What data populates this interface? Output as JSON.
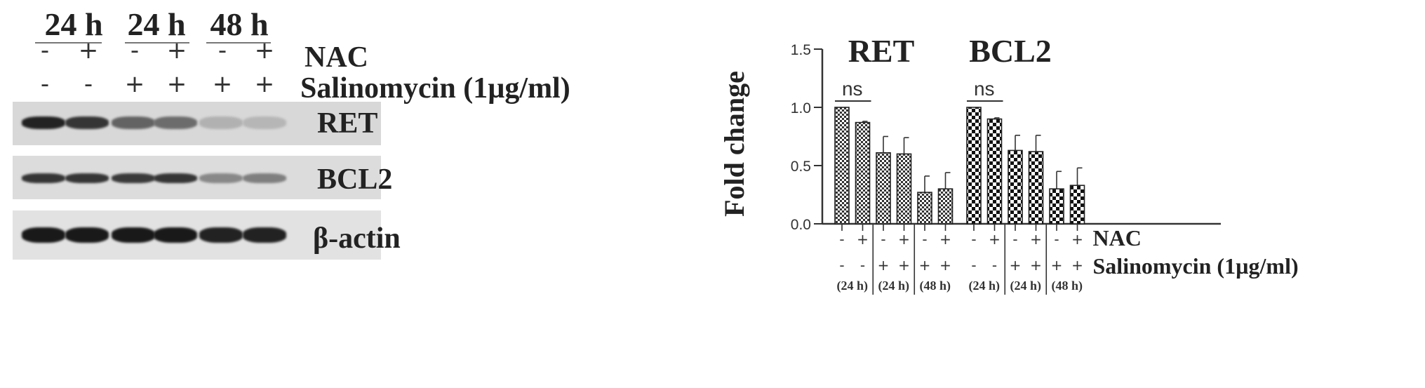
{
  "blot": {
    "time_headers": [
      "24 h",
      "24 h",
      "48 h"
    ],
    "nac_label": "NAC",
    "salinomycin_label": "Salinomycin (1µg/ml)",
    "nac_signs": [
      "-",
      "+",
      "-",
      "+",
      "-",
      "+"
    ],
    "salinomycin_signs": [
      "-",
      "-",
      "+",
      "+",
      "+",
      "+"
    ],
    "panels": [
      {
        "label": "RET",
        "intensities": [
          0.95,
          0.85,
          0.6,
          0.55,
          0.18,
          0.15
        ]
      },
      {
        "label": "BCL2",
        "intensities": [
          0.85,
          0.85,
          0.82,
          0.85,
          0.4,
          0.45
        ]
      },
      {
        "label": "β-actin",
        "intensities": [
          1.0,
          1.0,
          1.0,
          1.0,
          0.95,
          0.95
        ]
      }
    ]
  },
  "chart_data": {
    "type": "bar",
    "ylabel": "Fold change",
    "ylim": [
      0,
      1.5
    ],
    "yticks": [
      "0.0",
      "0.5",
      "1.0",
      "1.5"
    ],
    "groups": [
      {
        "title": "RET",
        "values": [
          1.0,
          0.87,
          0.61,
          0.6,
          0.27,
          0.3
        ],
        "errors": [
          0.0,
          0.01,
          0.14,
          0.14,
          0.14,
          0.14
        ],
        "significance": "ns"
      },
      {
        "title": "BCL2",
        "values": [
          1.0,
          0.9,
          0.63,
          0.62,
          0.3,
          0.33
        ],
        "errors": [
          0.0,
          0.01,
          0.13,
          0.14,
          0.15,
          0.15
        ],
        "significance": "ns"
      }
    ],
    "nac_label": "NAC",
    "salinomycin_label": "Salinomycin (1µg/ml)",
    "nac_signs": [
      "-",
      "+",
      "-",
      "+",
      "-",
      "+"
    ],
    "salinomycin_signs": [
      "-",
      "-",
      "+",
      "+",
      "+",
      "+"
    ],
    "time_labels": [
      "(24 h)",
      "(24 h)",
      "(48 h)"
    ]
  }
}
